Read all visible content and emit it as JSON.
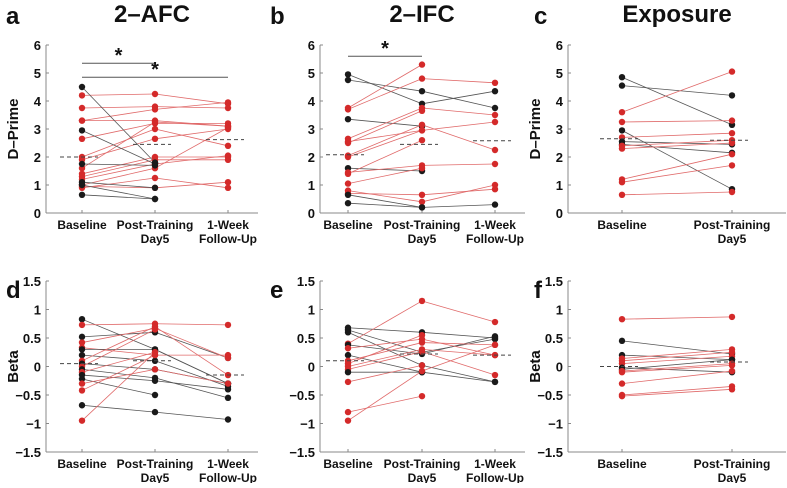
{
  "colors": {
    "improved": "#d42a2a",
    "not_improved": "#1a1a1a",
    "axis": "#888888"
  },
  "chart_data": [
    {
      "type": "line",
      "panel": "a",
      "title": "2–AFC",
      "ylabel": "D–Prime",
      "ylim": [
        0,
        6
      ],
      "yticks": [
        0,
        1,
        2,
        3,
        4,
        5,
        6
      ],
      "categories": [
        "Baseline",
        "Post-Training|Day5",
        "1-Week|Follow-Up"
      ],
      "means": [
        2.0,
        2.45,
        2.62
      ],
      "significance": [
        {
          "from": 0,
          "to": 1,
          "y": 5.35,
          "label": "*"
        },
        {
          "from": 0,
          "to": 2,
          "y": 4.85,
          "label": "*"
        }
      ],
      "subjects": [
        {
          "c": "red",
          "v": [
            4.2,
            4.25,
            3.9
          ]
        },
        {
          "c": "red",
          "v": [
            3.75,
            3.8,
            3.75
          ]
        },
        {
          "c": "red",
          "v": [
            3.3,
            3.7,
            3.95
          ]
        },
        {
          "c": "red",
          "v": [
            3.3,
            3.3,
            3.1
          ]
        },
        {
          "c": "red",
          "v": [
            2.65,
            3.2,
            3.2
          ]
        },
        {
          "c": "red",
          "v": [
            2.0,
            3.0,
            2.4
          ]
        },
        {
          "c": "red",
          "v": [
            1.9,
            2.65,
            3.0
          ]
        },
        {
          "c": "red",
          "v": [
            1.6,
            3.25,
            3.1
          ]
        },
        {
          "c": "red",
          "v": [
            1.4,
            2.0,
            2.0
          ]
        },
        {
          "c": "red",
          "v": [
            1.3,
            1.9,
            1.9
          ]
        },
        {
          "c": "red",
          "v": [
            1.2,
            1.75,
            2.05
          ]
        },
        {
          "c": "red",
          "v": [
            1.0,
            1.6,
            3.05
          ]
        },
        {
          "c": "red",
          "v": [
            0.95,
            0.9,
            1.1
          ]
        },
        {
          "c": "red",
          "v": [
            0.9,
            1.25,
            0.9
          ]
        },
        {
          "c": "black",
          "v": [
            4.5,
            1.8,
            null
          ]
        },
        {
          "c": "black",
          "v": [
            2.95,
            1.75,
            null
          ]
        },
        {
          "c": "black",
          "v": [
            1.75,
            1.7,
            null
          ]
        },
        {
          "c": "black",
          "v": [
            1.1,
            0.9,
            null
          ]
        },
        {
          "c": "black",
          "v": [
            1.0,
            0.5,
            null
          ]
        },
        {
          "c": "black",
          "v": [
            0.65,
            0.5,
            null
          ]
        }
      ]
    },
    {
      "type": "line",
      "panel": "b",
      "title": "2–IFC",
      "ylabel": "",
      "ylim": [
        0,
        6
      ],
      "yticks": [
        0,
        1,
        2,
        3,
        4,
        5,
        6
      ],
      "categories": [
        "Baseline",
        "Post-Training|Day5",
        "1-Week|Follow-Up"
      ],
      "means": [
        2.08,
        2.45,
        2.58
      ],
      "significance": [
        {
          "from": 0,
          "to": 1,
          "y": 5.6,
          "label": "*"
        }
      ],
      "subjects": [
        {
          "c": "black",
          "v": [
            4.95,
            3.9,
            4.35
          ]
        },
        {
          "c": "black",
          "v": [
            4.75,
            4.35,
            3.75
          ]
        },
        {
          "c": "red",
          "v": [
            3.75,
            5.3,
            null
          ]
        },
        {
          "c": "red",
          "v": [
            3.7,
            4.8,
            4.65
          ]
        },
        {
          "c": "black",
          "v": [
            3.35,
            3.1,
            null
          ]
        },
        {
          "c": "red",
          "v": [
            2.65,
            3.75,
            3.5
          ]
        },
        {
          "c": "red",
          "v": [
            2.55,
            2.95,
            3.25
          ]
        },
        {
          "c": "red",
          "v": [
            2.5,
            3.65,
            null
          ]
        },
        {
          "c": "red",
          "v": [
            2.05,
            3.15,
            2.25
          ]
        },
        {
          "c": "red",
          "v": [
            2.0,
            2.95,
            null
          ]
        },
        {
          "c": "black",
          "v": [
            1.6,
            1.5,
            null
          ]
        },
        {
          "c": "red",
          "v": [
            1.45,
            1.7,
            1.75
          ]
        },
        {
          "c": "red",
          "v": [
            1.4,
            2.6,
            null
          ]
        },
        {
          "c": "red",
          "v": [
            1.05,
            1.6,
            null
          ]
        },
        {
          "c": "red",
          "v": [
            0.8,
            0.4,
            1.0
          ]
        },
        {
          "c": "red",
          "v": [
            0.7,
            0.65,
            0.85
          ]
        },
        {
          "c": "black",
          "v": [
            0.65,
            0.2,
            0.3
          ]
        },
        {
          "c": "black",
          "v": [
            0.35,
            0.2,
            null
          ]
        }
      ]
    },
    {
      "type": "line",
      "panel": "c",
      "title": "Exposure",
      "ylabel": "D–Prime",
      "ylim": [
        0,
        6
      ],
      "yticks": [
        0,
        1,
        2,
        3,
        4,
        5,
        6
      ],
      "categories": [
        "Baseline",
        "Post-Training|Day5"
      ],
      "means": [
        2.65,
        2.6
      ],
      "significance": [],
      "subjects": [
        {
          "c": "black",
          "v": [
            4.85,
            3.15
          ]
        },
        {
          "c": "black",
          "v": [
            4.55,
            4.2
          ]
        },
        {
          "c": "red",
          "v": [
            3.6,
            5.05
          ]
        },
        {
          "c": "red",
          "v": [
            3.25,
            3.3
          ]
        },
        {
          "c": "black",
          "v": [
            2.95,
            0.85
          ]
        },
        {
          "c": "red",
          "v": [
            2.7,
            2.85
          ]
        },
        {
          "c": "black",
          "v": [
            2.55,
            2.45
          ]
        },
        {
          "c": "black",
          "v": [
            2.45,
            2.15
          ]
        },
        {
          "c": "red",
          "v": [
            2.4,
            2.6
          ]
        },
        {
          "c": "red",
          "v": [
            2.3,
            2.5
          ]
        },
        {
          "c": "red",
          "v": [
            1.2,
            2.1
          ]
        },
        {
          "c": "red",
          "v": [
            1.1,
            1.7
          ]
        },
        {
          "c": "red",
          "v": [
            0.65,
            0.75
          ]
        }
      ]
    },
    {
      "type": "line",
      "panel": "d",
      "title": "",
      "ylabel": "Beta",
      "ylim": [
        -1.5,
        1.5
      ],
      "yticks": [
        -1.5,
        -1,
        -0.5,
        0,
        0.5,
        1,
        1.5
      ],
      "categories": [
        "Baseline",
        "Post-Training|Day5",
        "1-Week|Follow-Up"
      ],
      "means": [
        0.05,
        0.1,
        -0.15
      ],
      "significance": [],
      "subjects": [
        {
          "c": "black",
          "v": [
            0.83,
            0.3,
            -0.3
          ]
        },
        {
          "c": "red",
          "v": [
            0.73,
            0.75,
            0.73
          ]
        },
        {
          "c": "black",
          "v": [
            0.52,
            0.6,
            0.15
          ]
        },
        {
          "c": "red",
          "v": [
            0.42,
            0.67,
            0.15
          ]
        },
        {
          "c": "red",
          "v": [
            0.33,
            0.2,
            0.2
          ]
        },
        {
          "c": "black",
          "v": [
            0.3,
            0.3,
            -0.3
          ]
        },
        {
          "c": "black",
          "v": [
            0.2,
            0.1,
            -0.35
          ]
        },
        {
          "c": "red",
          "v": [
            0.1,
            0.7,
            -0.15
          ]
        },
        {
          "c": "black",
          "v": [
            0.05,
            -0.05,
            -0.3
          ]
        },
        {
          "c": "red",
          "v": [
            0.0,
            0.65,
            null
          ]
        },
        {
          "c": "black",
          "v": [
            -0.05,
            -0.2,
            -0.55
          ]
        },
        {
          "c": "red",
          "v": [
            -0.1,
            0.25,
            null
          ]
        },
        {
          "c": "black",
          "v": [
            -0.15,
            -0.25,
            -0.4
          ]
        },
        {
          "c": "black",
          "v": [
            -0.22,
            -0.5,
            null
          ]
        },
        {
          "c": "red",
          "v": [
            -0.3,
            -0.05,
            -0.3
          ]
        },
        {
          "c": "red",
          "v": [
            -0.42,
            0.2,
            null
          ]
        },
        {
          "c": "black",
          "v": [
            -0.68,
            -0.8,
            -0.93
          ]
        },
        {
          "c": "red",
          "v": [
            -0.95,
            0.25,
            null
          ]
        }
      ]
    },
    {
      "type": "line",
      "panel": "e",
      "title": "",
      "ylabel": "",
      "ylim": [
        -1.5,
        1.5
      ],
      "yticks": [
        -1.5,
        -1,
        -0.5,
        0,
        0.5,
        1,
        1.5
      ],
      "categories": [
        "Baseline",
        "Post-Training|Day5",
        "1-Week|Follow-Up"
      ],
      "means": [
        0.1,
        0.22,
        0.2
      ],
      "significance": [],
      "subjects": [
        {
          "c": "black",
          "v": [
            0.68,
            0.6,
            0.5
          ]
        },
        {
          "c": "black",
          "v": [
            0.64,
            0.25,
            0.48
          ]
        },
        {
          "c": "black",
          "v": [
            0.6,
            0.02,
            -0.27
          ]
        },
        {
          "c": "red",
          "v": [
            0.4,
            1.15,
            0.78
          ]
        },
        {
          "c": "black",
          "v": [
            0.38,
            0.22,
            0.53
          ]
        },
        {
          "c": "red",
          "v": [
            0.32,
            0.48,
            0.2
          ]
        },
        {
          "c": "black",
          "v": [
            0.2,
            -0.1,
            -0.27
          ]
        },
        {
          "c": "red",
          "v": [
            0.1,
            0.42,
            0.38
          ]
        },
        {
          "c": "red",
          "v": [
            0.05,
            0.55,
            null
          ]
        },
        {
          "c": "red",
          "v": [
            0.0,
            0.3,
            0.2
          ]
        },
        {
          "c": "red",
          "v": [
            -0.05,
            0.26,
            -0.15
          ]
        },
        {
          "c": "black",
          "v": [
            -0.1,
            -0.1,
            null
          ]
        },
        {
          "c": "red",
          "v": [
            -0.27,
            0.02,
            null
          ]
        },
        {
          "c": "red",
          "v": [
            -0.8,
            -0.52,
            null
          ]
        },
        {
          "c": "red",
          "v": [
            -0.95,
            -0.08,
            0.38
          ]
        }
      ]
    },
    {
      "type": "line",
      "panel": "f",
      "title": "",
      "ylabel": "Beta",
      "ylim": [
        -1.5,
        1.5
      ],
      "yticks": [
        -1.5,
        -1,
        -0.5,
        0,
        0.5,
        1,
        1.5
      ],
      "categories": [
        "Baseline",
        "Post-Training|Day5"
      ],
      "means": [
        0.0,
        0.08
      ],
      "significance": [],
      "subjects": [
        {
          "c": "red",
          "v": [
            0.83,
            0.87
          ]
        },
        {
          "c": "black",
          "v": [
            0.45,
            0.22
          ]
        },
        {
          "c": "black",
          "v": [
            0.2,
            0.12
          ]
        },
        {
          "c": "red",
          "v": [
            0.14,
            0.3
          ]
        },
        {
          "c": "red",
          "v": [
            0.1,
            0.25
          ]
        },
        {
          "c": "red",
          "v": [
            0.05,
            0.18
          ]
        },
        {
          "c": "black",
          "v": [
            -0.02,
            -0.1
          ]
        },
        {
          "c": "black",
          "v": [
            -0.05,
            0.12
          ]
        },
        {
          "c": "red",
          "v": [
            -0.08,
            0.05
          ]
        },
        {
          "c": "red",
          "v": [
            -0.1,
            0.02
          ]
        },
        {
          "c": "red",
          "v": [
            -0.3,
            -0.08
          ]
        },
        {
          "c": "red",
          "v": [
            -0.5,
            -0.35
          ]
        },
        {
          "c": "red",
          "v": [
            -0.52,
            -0.4
          ]
        }
      ]
    }
  ]
}
